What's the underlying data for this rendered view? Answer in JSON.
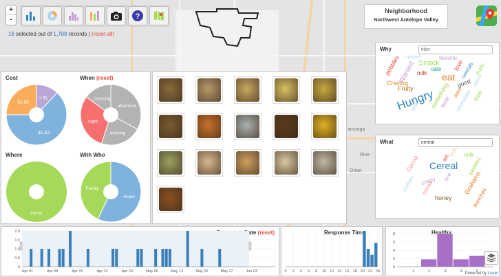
{
  "toolbar": {
    "zoom_in": "+",
    "zoom_out": "-",
    "buttons": [
      "bar-chart-icon",
      "pie-chart-icon",
      "histogram-icon",
      "bubble-chart-icon",
      "camera-icon",
      "help-icon",
      "map-icon"
    ]
  },
  "selection": {
    "selected": "16",
    "middle": " selected out of ",
    "total": "1,709",
    "suffix": " records | ",
    "reset": "(reset all)"
  },
  "neighborhood": {
    "title": "Neighborhood",
    "name": "Northwest Antelope Valley"
  },
  "map_labels": [
    "amonga",
    "Rive",
    "Ontar"
  ],
  "colors": {
    "blue": "#7fb2dc",
    "orange": "#f9ad5b",
    "purple": "#b9a6d6",
    "red": "#f86f6f",
    "gray": "#b3b3b3",
    "green": "#a6d85a",
    "bar_blue": "#3a7fb8",
    "healthy_purple": "#a86fc6"
  },
  "cost": {
    "title": "Cost",
    "slices": [
      {
        "label": "$1-$5",
        "value": 25,
        "color": "#f9ad5b"
      },
      {
        "label": "< $1",
        "value": 12,
        "color": "#b9a6d6"
      },
      {
        "label": "$1-$3",
        "value": 63,
        "color": "#7fb2dc"
      }
    ]
  },
  "when": {
    "title": "When",
    "reset": "(reset)",
    "slices": [
      {
        "label": "afternoon",
        "value": 33,
        "color": "#b3b3b3"
      },
      {
        "label": "evening",
        "value": 22,
        "color": "#b3b3b3"
      },
      {
        "label": "night",
        "value": 30,
        "color": "#f86f6f"
      },
      {
        "label": "morning",
        "value": 15,
        "color": "#b3b3b3"
      }
    ]
  },
  "where": {
    "title": "Where",
    "slices": [
      {
        "label": "Home",
        "value": 100,
        "color": "#a6d85a"
      }
    ]
  },
  "with_who": {
    "title": "With Who",
    "slices": [
      {
        "label": "Alone",
        "value": 57,
        "color": "#7fb2dc"
      },
      {
        "label": "Family",
        "value": 43,
        "color": "#a6d85a"
      }
    ]
  },
  "photos": [
    "#8a6a3a",
    "#b89a6a",
    "#c9a860",
    "#d9c060",
    "#c8a840",
    "#7a5a30",
    "#c8702a",
    "#aab0b0",
    "#5a3a1a",
    "#e0b020",
    "#9aa060",
    "#d8b890",
    "#d0a060",
    "#d8c8a0",
    "#c0b8a8",
    "#8a5020"
  ],
  "why": {
    "title": "Why",
    "placeholder": "filter",
    "words": [
      {
        "text": "Hungry",
        "size": 17,
        "color": "#2e86c1",
        "rot": -20
      },
      {
        "text": "Snack",
        "size": 11,
        "color": "#a6d85a",
        "rot": 0
      },
      {
        "text": "eat",
        "size": 14,
        "color": "#e67e22",
        "rot": 0
      },
      {
        "text": "Fruity",
        "size": 9,
        "color": "#b9770e",
        "rot": 0
      },
      {
        "text": "Craving",
        "size": 9,
        "color": "#e67e22",
        "rot": 0
      },
      {
        "text": "Wanted",
        "size": 10,
        "color": "#c39bd3",
        "rot": -60
      },
      {
        "text": "pebbles",
        "size": 9,
        "color": "#e74c3c",
        "rot": -60
      },
      {
        "text": "oats",
        "size": 8,
        "color": "#16a085",
        "rot": 0
      },
      {
        "text": "milk",
        "size": 8,
        "color": "#c0392b",
        "rot": 0
      },
      {
        "text": "love",
        "size": 9,
        "color": "#e74c3c",
        "rot": -60
      },
      {
        "text": "cereals",
        "size": 8,
        "color": "#2e86c1",
        "rot": -60
      },
      {
        "text": "favorite",
        "size": 8,
        "color": "#c39bd3",
        "rot": 0
      },
      {
        "text": "roasted",
        "size": 7,
        "color": "#aed6f1",
        "rot": 0
      },
      {
        "text": "good",
        "size": 9,
        "color": "#555",
        "rot": -20
      },
      {
        "text": "nature",
        "size": 7,
        "color": "#aed6f1",
        "rot": -60
      },
      {
        "text": "time",
        "size": 9,
        "color": "#a6d85a",
        "rot": -60
      },
      {
        "text": "something",
        "size": 9,
        "color": "#a6d85a",
        "rot": -60
      },
      {
        "text": "taste",
        "size": 8,
        "color": "#c39bd3",
        "rot": -60
      },
      {
        "text": "chocolate",
        "size": 8,
        "color": "#aed6f1",
        "rot": -60
      },
      {
        "text": "really",
        "size": 8,
        "color": "#a6d85a",
        "rot": -60
      },
      {
        "text": "didnt",
        "size": 7,
        "color": "#e67e22",
        "rot": -60
      },
      {
        "text": "desk",
        "size": 7,
        "color": "#aed6f1",
        "rot": -60
      }
    ]
  },
  "what": {
    "title": "What",
    "value": "cereal",
    "words": [
      {
        "text": "Cereal",
        "size": 14,
        "color": "#2e86c1",
        "rot": 0
      },
      {
        "text": "Grahams",
        "size": 9,
        "color": "#e67e22",
        "rot": -60
      },
      {
        "text": "honey",
        "size": 9,
        "color": "#7a5a30",
        "rot": 0
      },
      {
        "text": "Cocoa",
        "size": 9,
        "color": "#f1948a",
        "rot": -60
      },
      {
        "text": "crispy",
        "size": 8,
        "color": "#c39bd3",
        "rot": -20
      },
      {
        "text": "Golden",
        "size": 8,
        "color": "#aed6f1",
        "rot": -60
      },
      {
        "text": "milk",
        "size": 8,
        "color": "#a6d85a",
        "rot": 0
      },
      {
        "text": "rice",
        "size": 8,
        "color": "#c39bd3",
        "rot": -60
      },
      {
        "text": "cocoa",
        "size": 8,
        "color": "#f1948a",
        "rot": -60
      },
      {
        "text": "bunches",
        "size": 8,
        "color": "#e67e22",
        "rot": -60
      },
      {
        "text": "pebbles",
        "size": 8,
        "color": "#a6d85a",
        "rot": -60
      },
      {
        "text": "ate",
        "size": 8,
        "color": "#e74c3c",
        "rot": -60
      },
      {
        "text": "fruity",
        "size": 7,
        "color": "#f5cba7",
        "rot": -60
      }
    ]
  },
  "chart_data": [
    {
      "type": "bar",
      "title": "Response Date",
      "reset": "(reset)",
      "ylim": [
        0,
        2.0
      ],
      "yticks": [
        "0",
        "0.5",
        "1.0",
        "1.5",
        "2.0"
      ],
      "xticks": [
        "Apr 01",
        "Apr 08",
        "Apr 15",
        "Apr 22",
        "Apr 29",
        "May 06",
        "May 13",
        "May 20",
        "May 27",
        "Jun 03"
      ],
      "x": [
        "Mar 29",
        "Apr 02",
        "Apr 05",
        "Apr 07",
        "Apr 10",
        "Apr 11",
        "Apr 13",
        "Apr 18",
        "Apr 25",
        "May 02",
        "May 03",
        "May 07",
        "May 09",
        "May 10",
        "May 11",
        "May 16",
        "May 20",
        "May 25"
      ],
      "values": [
        1,
        1,
        1,
        1,
        1,
        1,
        2,
        1,
        1,
        1,
        1,
        1,
        1,
        1,
        1,
        2,
        1,
        1
      ]
    },
    {
      "type": "bar",
      "title": "Response Time",
      "xlim": [
        0,
        24
      ],
      "xticks": [
        "0",
        "2",
        "4",
        "6",
        "8",
        "10",
        "12",
        "14",
        "16",
        "18",
        "20",
        "22",
        "24"
      ],
      "x": [
        20,
        21,
        22,
        23
      ],
      "values": [
        6,
        3,
        2,
        4
      ]
    },
    {
      "type": "bar",
      "title": "Healthy",
      "yticks": [
        "0",
        "2",
        "4",
        "6",
        "8"
      ],
      "xticks": [
        "1",
        "2",
        "3",
        "4",
        "5"
      ],
      "x": [
        2,
        3,
        4,
        5
      ],
      "values": [
        2,
        9,
        2,
        3
      ]
    }
  ],
  "footer": {
    "powered_prefix": "Powered by ",
    "powered_link": "Lexer"
  }
}
